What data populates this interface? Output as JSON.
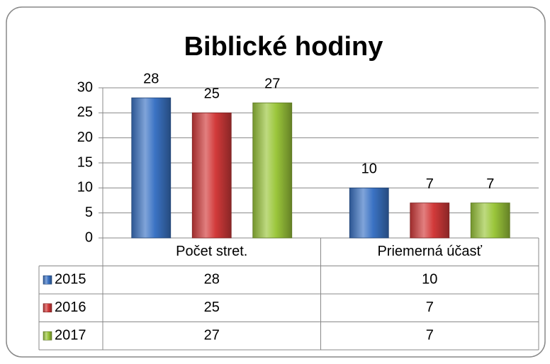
{
  "chart_data": {
    "type": "bar",
    "title": "Biblické hodiny",
    "categories": [
      "Počet stret.",
      "Priemerná účasť"
    ],
    "series": [
      {
        "name": "2015",
        "color": "#3b73c4",
        "values": [
          28,
          10
        ]
      },
      {
        "name": "2016",
        "color": "#d23a3a",
        "values": [
          25,
          7
        ]
      },
      {
        "name": "2017",
        "color": "#9bc63b",
        "values": [
          27,
          7
        ]
      }
    ],
    "ylim": [
      0,
      30
    ],
    "yticks": [
      0,
      5,
      10,
      15,
      20,
      25,
      30
    ],
    "grid": true,
    "data_table": true
  }
}
